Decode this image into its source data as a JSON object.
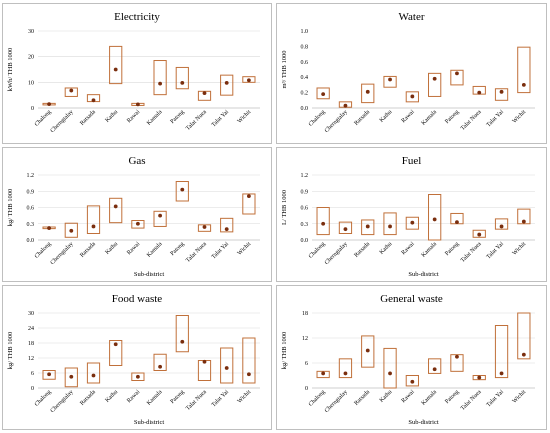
{
  "chart_data": [
    {
      "type": "range",
      "title": "Electricity",
      "xlabel": "",
      "ylabel": "kWh/ THB 1000",
      "ylim": [
        0,
        30
      ],
      "yticks": [
        0,
        10,
        20,
        30
      ],
      "grid": true,
      "categories": [
        "Chalong",
        "Cherngtalay",
        "Ratsada",
        "Kathu",
        "Rawai",
        "Kamala",
        "Patong",
        "Talat Nuea",
        "Talat Yai",
        "Wichit"
      ],
      "min": [
        1.2,
        4.5,
        2.5,
        9.5,
        1.0,
        5.2,
        7.5,
        3.0,
        5.0,
        10.0
      ],
      "max": [
        1.8,
        7.8,
        5.2,
        24.0,
        1.8,
        18.5,
        15.8,
        6.5,
        12.8,
        12.2
      ],
      "median": [
        1.5,
        6.8,
        3.0,
        15.0,
        1.4,
        9.5,
        9.8,
        5.8,
        9.8,
        10.8
      ]
    },
    {
      "type": "range",
      "title": "Water",
      "xlabel": "",
      "ylabel": "m³/ THB 1000",
      "ylim": [
        0,
        1.0
      ],
      "yticks": [
        0,
        0.2,
        0.4,
        0.6,
        0.8,
        1.0
      ],
      "grid": false,
      "categories": [
        "Chalong",
        "Cherngtalay",
        "Ratsada",
        "Kathu",
        "Rawai",
        "Kamala",
        "Patong",
        "Talat Nuea",
        "Talat Yai",
        "Wichit"
      ],
      "min": [
        0.12,
        0.01,
        0.07,
        0.27,
        0.08,
        0.15,
        0.3,
        0.18,
        0.1,
        0.2
      ],
      "max": [
        0.26,
        0.08,
        0.31,
        0.41,
        0.21,
        0.45,
        0.49,
        0.28,
        0.25,
        0.79
      ],
      "median": [
        0.18,
        0.03,
        0.21,
        0.37,
        0.15,
        0.38,
        0.45,
        0.2,
        0.21,
        0.3
      ]
    },
    {
      "type": "range",
      "title": "Gas",
      "xlabel": "Sub-district",
      "ylabel": "kg/ THB 1000",
      "ylim": [
        0,
        1.2
      ],
      "yticks": [
        0,
        0.3,
        0.6,
        0.9,
        1.2
      ],
      "grid": true,
      "categories": [
        "Chalong",
        "Cherngtalay",
        "Ratsada",
        "Kathu",
        "Rawai",
        "Kamala",
        "Patong",
        "Talat Nuea",
        "Talat Yai",
        "Wichit"
      ],
      "min": [
        0.21,
        0.05,
        0.12,
        0.32,
        0.22,
        0.25,
        0.72,
        0.16,
        0.15,
        0.48
      ],
      "max": [
        0.24,
        0.31,
        0.63,
        0.77,
        0.36,
        0.53,
        1.08,
        0.28,
        0.4,
        0.85
      ],
      "median": [
        0.22,
        0.17,
        0.25,
        0.62,
        0.3,
        0.45,
        0.93,
        0.24,
        0.2,
        0.81
      ]
    },
    {
      "type": "range",
      "title": "Fuel",
      "xlabel": "Sub-district",
      "ylabel": "L/ THB 1000",
      "ylim": [
        0,
        1.2
      ],
      "yticks": [
        0,
        0.3,
        0.6,
        0.9,
        1.2
      ],
      "grid": true,
      "categories": [
        "Chalong",
        "Cherngtalay",
        "Ratsada",
        "Kathu",
        "Rawai",
        "Kamala",
        "Patong",
        "Talat Nuea",
        "Talat Yai",
        "Wichit"
      ],
      "min": [
        0.1,
        0.12,
        0.1,
        0.1,
        0.2,
        0.0,
        0.3,
        0.05,
        0.2,
        0.3
      ],
      "max": [
        0.6,
        0.33,
        0.37,
        0.5,
        0.42,
        0.84,
        0.49,
        0.18,
        0.39,
        0.57
      ],
      "median": [
        0.3,
        0.2,
        0.25,
        0.25,
        0.32,
        0.38,
        0.33,
        0.1,
        0.25,
        0.34
      ]
    },
    {
      "type": "range",
      "title": "Food waste",
      "xlabel": "Sub-district",
      "ylabel": "kg/ THB 1000",
      "ylim": [
        0,
        30
      ],
      "yticks": [
        0,
        6,
        12,
        18,
        24,
        30
      ],
      "grid": true,
      "categories": [
        "Chalong",
        "Cherngtalay",
        "Ratsada",
        "Kathu",
        "Rawai",
        "Kamala",
        "Patong",
        "Talat Nuea",
        "Talat Yai",
        "Wichit"
      ],
      "min": [
        3.5,
        0.5,
        2.0,
        9.0,
        3.0,
        7.0,
        14.5,
        3.0,
        2.0,
        2.0
      ],
      "max": [
        7.0,
        8.0,
        10.0,
        19.0,
        6.0,
        13.5,
        29.0,
        11.0,
        16.0,
        20.0
      ],
      "median": [
        5.5,
        4.5,
        5.0,
        17.5,
        4.5,
        8.5,
        18.5,
        10.5,
        8.0,
        5.5
      ]
    },
    {
      "type": "range",
      "title": "General waste",
      "xlabel": "Sub-district",
      "ylabel": "kg/ THB 1000",
      "ylim": [
        0,
        18
      ],
      "yticks": [
        0,
        6,
        12,
        18
      ],
      "grid": true,
      "categories": [
        "Chalong",
        "Cherngtalay",
        "Ratsada",
        "Kathu",
        "Rawai",
        "Kamala",
        "Patong",
        "Talat Nuea",
        "Talat Yai",
        "Wichit"
      ],
      "min": [
        2.5,
        2.5,
        5.0,
        0.0,
        0.5,
        3.5,
        4.0,
        2.0,
        2.5,
        7.0
      ],
      "max": [
        4.0,
        7.0,
        12.5,
        9.5,
        3.0,
        7.0,
        8.0,
        3.0,
        15.0,
        18.0
      ],
      "median": [
        3.5,
        3.5,
        9.0,
        3.5,
        1.5,
        4.5,
        7.5,
        2.5,
        3.5,
        8.0
      ]
    }
  ]
}
